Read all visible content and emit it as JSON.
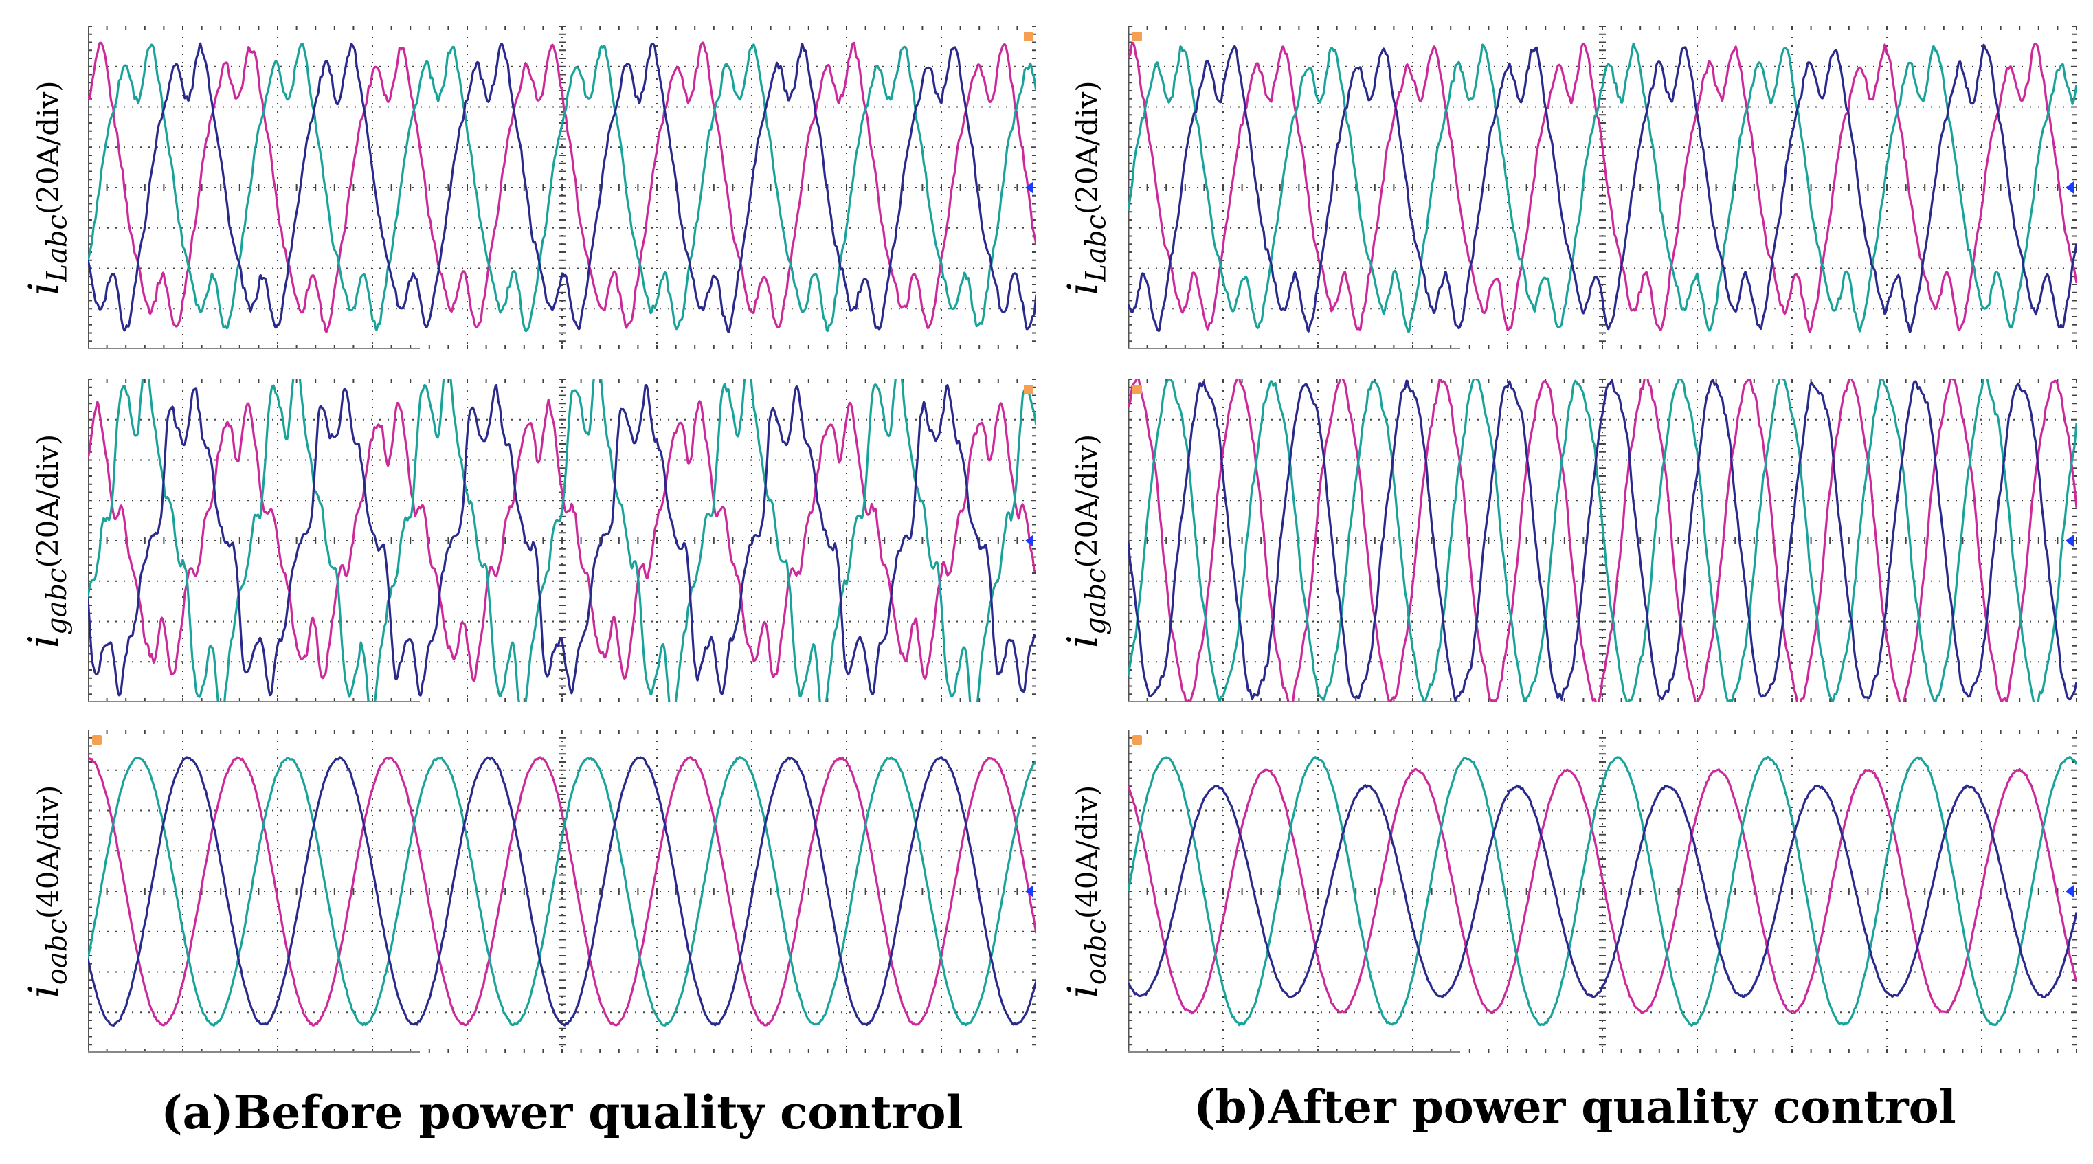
{
  "captions": {
    "left": "(a)Before power quality control",
    "right": "(b)After power quality control"
  },
  "colors": {
    "phase_a": "#cc2a9a",
    "phase_b": "#1aa39a",
    "phase_c": "#2a2a8c",
    "grid": "#444444",
    "marker_orange": "#f5a050",
    "marker_blue": "#1a3cff"
  },
  "chart_data": [
    {
      "type": "line",
      "column": "a",
      "row": 1,
      "ylabel": {
        "symbol": "i",
        "subscript": "Labc",
        "unit": "(20A/div)"
      },
      "grid": true,
      "divisions": {
        "x": 10,
        "y": 8
      },
      "cycles_per_screen": 6.3,
      "waveform": "rectifier-load",
      "series": [
        {
          "name": "",
          "amplitude_div": 3.5,
          "phase_deg": 90
        },
        {
          "name": "",
          "amplitude_div": 3.5,
          "phase_deg": -30
        },
        {
          "name": "",
          "amplitude_div": 3.5,
          "phase_deg": 210
        }
      ]
    },
    {
      "type": "line",
      "column": "a",
      "row": 2,
      "ylabel": {
        "symbol": "i",
        "subscript": "gabc",
        "unit": "(20A/div)"
      },
      "grid": true,
      "divisions": {
        "x": 10,
        "y": 8
      },
      "cycles_per_screen": 6.3,
      "waveform": "distorted",
      "series": [
        {
          "name": "",
          "amplitude_div": 3.0,
          "phase_deg": 90
        },
        {
          "name": "",
          "amplitude_div": 3.9,
          "phase_deg": -30
        },
        {
          "name": "",
          "amplitude_div": 3.4,
          "phase_deg": 210
        }
      ]
    },
    {
      "type": "line",
      "column": "a",
      "row": 3,
      "ylabel": {
        "symbol": "i",
        "subscript": "oabc",
        "unit": "(40A/div)"
      },
      "grid": true,
      "divisions": {
        "x": 10,
        "y": 8
      },
      "cycles_per_screen": 6.3,
      "waveform": "sine",
      "series": [
        {
          "name": "",
          "amplitude_div": 3.3,
          "phase_deg": 90
        },
        {
          "name": "",
          "amplitude_div": 3.3,
          "phase_deg": -30
        },
        {
          "name": "",
          "amplitude_div": 3.3,
          "phase_deg": 210
        }
      ]
    },
    {
      "type": "line",
      "column": "b",
      "row": 1,
      "ylabel": {
        "symbol": "i",
        "subscript": "Labc",
        "unit": "(20A/div)"
      },
      "grid": true,
      "divisions": {
        "x": 10,
        "y": 8
      },
      "cycles_per_screen": 6.3,
      "waveform": "rectifier-load",
      "series": [
        {
          "name": "",
          "amplitude_div": 3.5,
          "phase_deg": 110
        },
        {
          "name": "",
          "amplitude_div": 3.5,
          "phase_deg": -10
        },
        {
          "name": "",
          "amplitude_div": 3.5,
          "phase_deg": 230
        }
      ]
    },
    {
      "type": "line",
      "column": "b",
      "row": 2,
      "ylabel": {
        "symbol": "i",
        "subscript": "gabc",
        "unit": "(20A/div)"
      },
      "grid": true,
      "divisions": {
        "x": 10,
        "y": 8
      },
      "cycles_per_screen": 9.3,
      "waveform": "near-sine",
      "series": [
        {
          "name": "",
          "amplitude_div": 3.9,
          "phase_deg": 60
        },
        {
          "name": "",
          "amplitude_div": 3.9,
          "phase_deg": -60
        },
        {
          "name": "",
          "amplitude_div": 3.9,
          "phase_deg": 180
        }
      ]
    },
    {
      "type": "line",
      "column": "b",
      "row": 3,
      "ylabel": {
        "symbol": "i",
        "subscript": "oabc",
        "unit": "(40A/div)"
      },
      "grid": true,
      "divisions": {
        "x": 10,
        "y": 8
      },
      "cycles_per_screen": 6.3,
      "waveform": "sine-unbalanced",
      "series": [
        {
          "name": "",
          "amplitude_div": 3.0,
          "phase_deg": 120
        },
        {
          "name": "",
          "amplitude_div": 3.3,
          "phase_deg": 0
        },
        {
          "name": "",
          "amplitude_div": 2.6,
          "phase_deg": 240
        }
      ]
    }
  ]
}
